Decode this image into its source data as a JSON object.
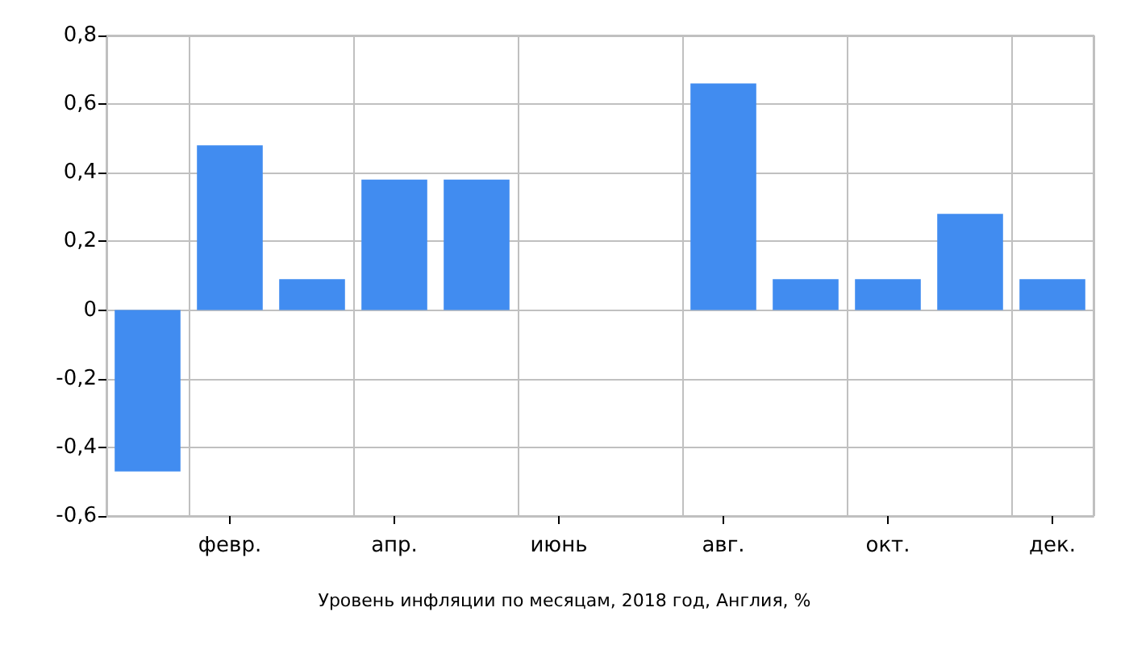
{
  "chart_data": {
    "type": "bar",
    "title": "Уровень инфляции по месяцам, 2018 год, Англия, %",
    "categories": [
      null,
      "февр.",
      null,
      "апр.",
      null,
      "июнь",
      null,
      "авг.",
      null,
      "окт.",
      null,
      "дек."
    ],
    "values": [
      -0.47,
      0.48,
      0.09,
      0.38,
      0.38,
      0,
      0,
      0.66,
      0.09,
      0.09,
      0.28,
      0.09
    ],
    "color": "#418cf0",
    "ylim": [
      -0.6,
      0.8
    ],
    "yticks": [
      {
        "value": -0.6,
        "label": "-0,6"
      },
      {
        "value": -0.4,
        "label": "-0,4"
      },
      {
        "value": -0.2,
        "label": "-0,2"
      },
      0,
      {
        "value": 0.2,
        "label": "0,2"
      },
      {
        "value": 0.4,
        "label": "0,4"
      },
      {
        "value": 0.6,
        "label": "0,6"
      },
      {
        "value": 0.8,
        "label": "0,8"
      }
    ],
    "grid": true
  }
}
